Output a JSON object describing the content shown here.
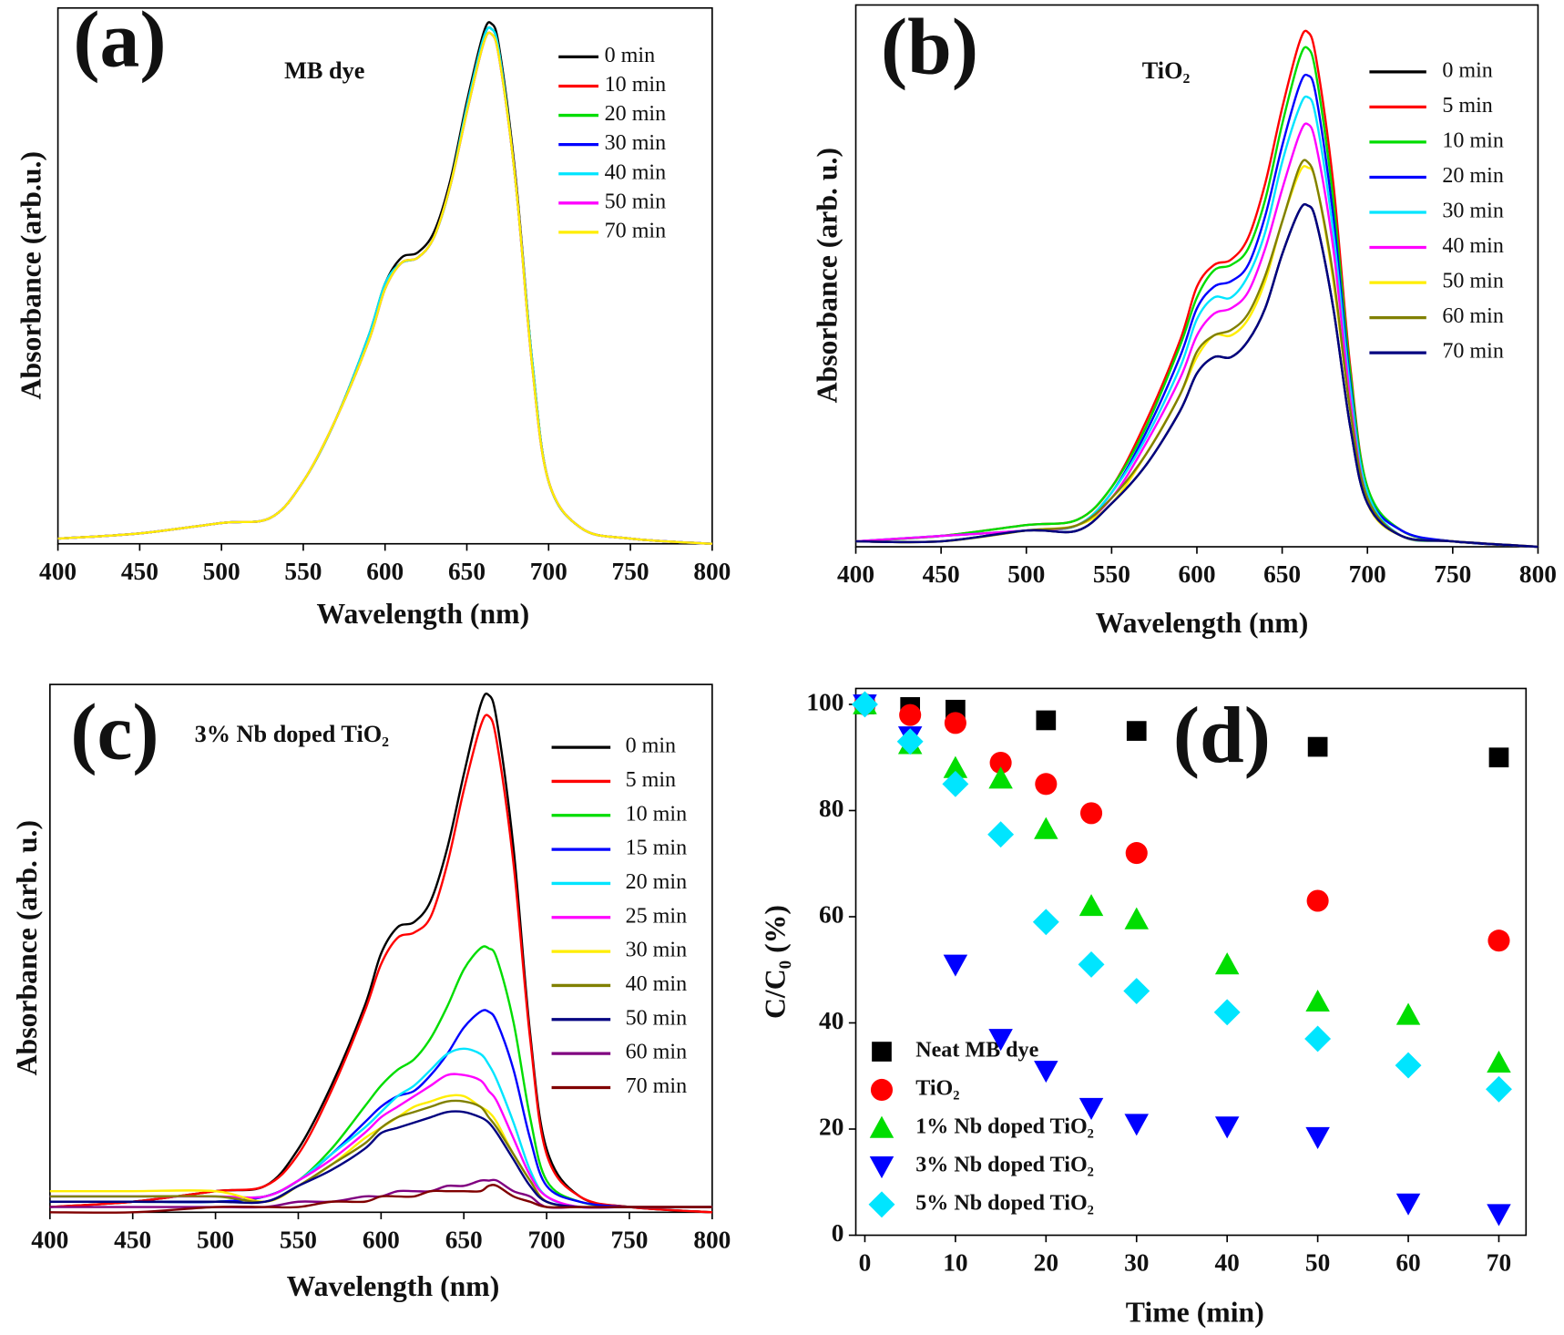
{
  "chart_data": [
    {
      "type": "line",
      "panel_label": "(a)",
      "annotation": "MB dye",
      "x_label": "Wavelength (nm)",
      "y_label": "Absorbance (arb.u.)",
      "xlim": [
        400,
        800
      ],
      "xticks": [
        400,
        450,
        500,
        550,
        600,
        650,
        700,
        750,
        800
      ],
      "ylim": [
        0,
        1.03
      ],
      "x": [
        400,
        450,
        500,
        530,
        550,
        570,
        590,
        600,
        610,
        620,
        630,
        640,
        650,
        660,
        665,
        670,
        680,
        690,
        700,
        720,
        750,
        800
      ],
      "series": [
        {
          "name": "0 min",
          "color": "#000000",
          "values": [
            0.01,
            0.02,
            0.04,
            0.05,
            0.12,
            0.24,
            0.4,
            0.5,
            0.55,
            0.56,
            0.6,
            0.7,
            0.85,
            0.98,
            1.0,
            0.95,
            0.7,
            0.35,
            0.12,
            0.03,
            0.01,
            0.0
          ]
        },
        {
          "name": "10 min",
          "color": "#ff0000",
          "values": [
            0.01,
            0.02,
            0.04,
            0.05,
            0.12,
            0.24,
            0.4,
            0.5,
            0.54,
            0.55,
            0.59,
            0.69,
            0.84,
            0.97,
            0.99,
            0.94,
            0.69,
            0.35,
            0.12,
            0.03,
            0.01,
            0.0
          ]
        },
        {
          "name": "20 min",
          "color": "#00dd00",
          "values": [
            0.01,
            0.02,
            0.04,
            0.05,
            0.12,
            0.24,
            0.4,
            0.5,
            0.54,
            0.55,
            0.59,
            0.69,
            0.84,
            0.97,
            0.99,
            0.94,
            0.69,
            0.35,
            0.12,
            0.03,
            0.01,
            0.0
          ]
        },
        {
          "name": "30 min",
          "color": "#0000ff",
          "values": [
            0.01,
            0.02,
            0.04,
            0.05,
            0.12,
            0.24,
            0.39,
            0.49,
            0.54,
            0.55,
            0.59,
            0.69,
            0.83,
            0.96,
            0.98,
            0.93,
            0.69,
            0.34,
            0.12,
            0.03,
            0.01,
            0.0
          ]
        },
        {
          "name": "40 min",
          "color": "#00e5ff",
          "values": [
            0.01,
            0.02,
            0.04,
            0.05,
            0.12,
            0.24,
            0.4,
            0.5,
            0.54,
            0.55,
            0.59,
            0.69,
            0.84,
            0.97,
            0.99,
            0.94,
            0.69,
            0.35,
            0.12,
            0.03,
            0.01,
            0.0
          ]
        },
        {
          "name": "50 min",
          "color": "#ff00ff",
          "values": [
            0.01,
            0.02,
            0.04,
            0.05,
            0.12,
            0.24,
            0.39,
            0.49,
            0.54,
            0.55,
            0.59,
            0.69,
            0.83,
            0.96,
            0.98,
            0.93,
            0.69,
            0.34,
            0.12,
            0.03,
            0.01,
            0.0
          ]
        },
        {
          "name": "70 min",
          "color": "#ffee00",
          "values": [
            0.01,
            0.02,
            0.04,
            0.05,
            0.12,
            0.24,
            0.39,
            0.49,
            0.54,
            0.55,
            0.59,
            0.69,
            0.83,
            0.96,
            0.98,
            0.93,
            0.69,
            0.34,
            0.12,
            0.03,
            0.01,
            0.0
          ]
        }
      ]
    },
    {
      "type": "line",
      "panel_label": "(b)",
      "annotation": "TiO₂",
      "x_label": "Wavelength (nm)",
      "y_label": "Absorbance (arb. u.)",
      "xlim": [
        400,
        800
      ],
      "xticks": [
        400,
        450,
        500,
        550,
        600,
        650,
        700,
        750,
        800
      ],
      "ylim": [
        0,
        1
      ],
      "x": [
        400,
        450,
        500,
        530,
        550,
        570,
        590,
        600,
        610,
        620,
        630,
        640,
        650,
        660,
        665,
        670,
        680,
        690,
        700,
        720,
        750,
        800
      ],
      "series": [
        {
          "name": "0 min",
          "color": "#000000",
          "values": [
            0.01,
            0.01,
            0.03,
            0.03,
            0.08,
            0.15,
            0.25,
            0.32,
            0.35,
            0.35,
            0.38,
            0.44,
            0.54,
            0.62,
            0.63,
            0.6,
            0.44,
            0.22,
            0.08,
            0.02,
            0.01,
            0.0
          ]
        },
        {
          "name": "5 min",
          "color": "#ff0000",
          "values": [
            0.01,
            0.02,
            0.04,
            0.05,
            0.11,
            0.23,
            0.38,
            0.48,
            0.52,
            0.53,
            0.57,
            0.67,
            0.81,
            0.93,
            0.95,
            0.9,
            0.67,
            0.33,
            0.11,
            0.03,
            0.01,
            0.0
          ]
        },
        {
          "name": "10 min",
          "color": "#00dd00",
          "values": [
            0.01,
            0.02,
            0.04,
            0.05,
            0.11,
            0.22,
            0.37,
            0.46,
            0.51,
            0.52,
            0.55,
            0.64,
            0.78,
            0.9,
            0.92,
            0.87,
            0.64,
            0.32,
            0.11,
            0.03,
            0.01,
            0.0
          ]
        },
        {
          "name": "20 min",
          "color": "#0000ff",
          "values": [
            0.01,
            0.02,
            0.03,
            0.04,
            0.1,
            0.21,
            0.35,
            0.44,
            0.48,
            0.49,
            0.52,
            0.61,
            0.74,
            0.85,
            0.87,
            0.83,
            0.61,
            0.3,
            0.1,
            0.03,
            0.01,
            0.0
          ]
        },
        {
          "name": "30 min",
          "color": "#00e5ff",
          "values": [
            0.01,
            0.02,
            0.03,
            0.04,
            0.1,
            0.2,
            0.33,
            0.42,
            0.46,
            0.46,
            0.5,
            0.58,
            0.71,
            0.81,
            0.83,
            0.79,
            0.58,
            0.29,
            0.1,
            0.02,
            0.01,
            0.0
          ]
        },
        {
          "name": "40 min",
          "color": "#ff00ff",
          "values": [
            0.01,
            0.02,
            0.03,
            0.04,
            0.09,
            0.19,
            0.31,
            0.39,
            0.43,
            0.44,
            0.47,
            0.55,
            0.66,
            0.76,
            0.78,
            0.74,
            0.55,
            0.27,
            0.09,
            0.02,
            0.01,
            0.0
          ]
        },
        {
          "name": "50 min",
          "color": "#ffee00",
          "values": [
            0.01,
            0.01,
            0.03,
            0.04,
            0.08,
            0.17,
            0.28,
            0.35,
            0.39,
            0.39,
            0.42,
            0.49,
            0.6,
            0.69,
            0.7,
            0.67,
            0.49,
            0.25,
            0.08,
            0.02,
            0.01,
            0.0
          ]
        },
        {
          "name": "60 min",
          "color": "#808000",
          "values": [
            0.01,
            0.01,
            0.03,
            0.04,
            0.09,
            0.17,
            0.28,
            0.36,
            0.39,
            0.4,
            0.43,
            0.5,
            0.6,
            0.7,
            0.71,
            0.67,
            0.5,
            0.25,
            0.09,
            0.02,
            0.01,
            0.0
          ]
        },
        {
          "name": "70 min",
          "color": "#000080",
          "values": [
            0.01,
            0.01,
            0.03,
            0.03,
            0.08,
            0.15,
            0.25,
            0.32,
            0.35,
            0.35,
            0.38,
            0.44,
            0.54,
            0.62,
            0.63,
            0.6,
            0.44,
            0.22,
            0.08,
            0.02,
            0.01,
            0.0
          ]
        }
      ]
    },
    {
      "type": "line",
      "panel_label": "(c)",
      "annotation": "3% Nb doped TiO₂",
      "x_label": "Wavelength (nm)",
      "y_label": "Absorbance (arb. u.)",
      "xlim": [
        400,
        800
      ],
      "xticks": [
        400,
        450,
        500,
        550,
        600,
        650,
        700,
        750,
        800
      ],
      "ylim": [
        0,
        1
      ],
      "x": [
        400,
        450,
        500,
        530,
        550,
        570,
        590,
        600,
        610,
        620,
        630,
        640,
        650,
        660,
        665,
        670,
        680,
        690,
        700,
        720,
        750,
        800
      ],
      "series": [
        {
          "name": "0 min",
          "color": "#000000",
          "values": [
            0.01,
            0.02,
            0.04,
            0.05,
            0.12,
            0.24,
            0.39,
            0.49,
            0.54,
            0.55,
            0.59,
            0.69,
            0.83,
            0.96,
            0.98,
            0.93,
            0.69,
            0.34,
            0.12,
            0.03,
            0.01,
            0.0
          ]
        },
        {
          "name": "5 min",
          "color": "#ff0000",
          "values": [
            0.01,
            0.02,
            0.04,
            0.05,
            0.11,
            0.23,
            0.38,
            0.47,
            0.52,
            0.53,
            0.56,
            0.66,
            0.8,
            0.92,
            0.94,
            0.89,
            0.66,
            0.33,
            0.11,
            0.03,
            0.01,
            0.0
          ]
        },
        {
          "name": "10 min",
          "color": "#00dd00",
          "values": [
            0.02,
            0.02,
            0.02,
            0.03,
            0.06,
            0.12,
            0.2,
            0.24,
            0.27,
            0.29,
            0.33,
            0.39,
            0.46,
            0.5,
            0.5,
            0.48,
            0.36,
            0.18,
            0.06,
            0.02,
            0.01,
            0.01
          ]
        },
        {
          "name": "15 min",
          "color": "#0000ff",
          "values": [
            0.02,
            0.02,
            0.02,
            0.03,
            0.06,
            0.11,
            0.17,
            0.2,
            0.22,
            0.23,
            0.26,
            0.3,
            0.35,
            0.38,
            0.38,
            0.36,
            0.27,
            0.14,
            0.05,
            0.02,
            0.01,
            0.01
          ]
        },
        {
          "name": "20 min",
          "color": "#00e5ff",
          "values": [
            0.03,
            0.03,
            0.03,
            0.03,
            0.06,
            0.11,
            0.16,
            0.19,
            0.22,
            0.24,
            0.27,
            0.3,
            0.31,
            0.3,
            0.28,
            0.25,
            0.17,
            0.08,
            0.03,
            0.01,
            0.01,
            0.01
          ]
        },
        {
          "name": "25 min",
          "color": "#ff00ff",
          "values": [
            0.03,
            0.03,
            0.03,
            0.03,
            0.06,
            0.1,
            0.15,
            0.18,
            0.2,
            0.22,
            0.24,
            0.26,
            0.26,
            0.25,
            0.23,
            0.21,
            0.14,
            0.07,
            0.03,
            0.01,
            0.01,
            0.01
          ]
        },
        {
          "name": "30 min",
          "color": "#ffee00",
          "values": [
            0.04,
            0.04,
            0.04,
            0.02,
            0.05,
            0.09,
            0.14,
            0.16,
            0.18,
            0.2,
            0.21,
            0.22,
            0.22,
            0.2,
            0.19,
            0.17,
            0.11,
            0.06,
            0.02,
            0.01,
            0.01,
            0.01
          ]
        },
        {
          "name": "40 min",
          "color": "#808000",
          "values": [
            0.03,
            0.03,
            0.03,
            0.02,
            0.05,
            0.09,
            0.13,
            0.16,
            0.18,
            0.19,
            0.2,
            0.21,
            0.21,
            0.2,
            0.18,
            0.16,
            0.11,
            0.06,
            0.02,
            0.01,
            0.01,
            0.01
          ]
        },
        {
          "name": "50 min",
          "color": "#000080",
          "values": [
            0.02,
            0.02,
            0.02,
            0.02,
            0.05,
            0.08,
            0.12,
            0.15,
            0.16,
            0.17,
            0.18,
            0.19,
            0.19,
            0.18,
            0.17,
            0.15,
            0.1,
            0.05,
            0.02,
            0.01,
            0.01,
            0.01
          ]
        },
        {
          "name": "60 min",
          "color": "#800080",
          "values": [
            0.01,
            0.01,
            0.01,
            0.01,
            0.02,
            0.02,
            0.03,
            0.03,
            0.04,
            0.04,
            0.04,
            0.05,
            0.05,
            0.06,
            0.06,
            0.06,
            0.04,
            0.03,
            0.01,
            0.01,
            0.01,
            0.01
          ]
        },
        {
          "name": "70 min",
          "color": "#800000",
          "values": [
            0.0,
            0.0,
            0.01,
            0.01,
            0.01,
            0.02,
            0.02,
            0.03,
            0.03,
            0.03,
            0.04,
            0.04,
            0.04,
            0.04,
            0.05,
            0.05,
            0.03,
            0.02,
            0.01,
            0.01,
            0.01,
            0.01
          ]
        }
      ]
    },
    {
      "type": "scatter",
      "panel_label": "(d)",
      "x_label": "Time (min)",
      "y_label": "C/C₀ (%)",
      "xlim": [
        -1,
        73
      ],
      "xticks": [
        0,
        10,
        20,
        30,
        40,
        50,
        60,
        70
      ],
      "ylim": [
        0,
        103
      ],
      "yticks": [
        0,
        20,
        40,
        60,
        80,
        100
      ],
      "series": [
        {
          "name": "Neat MB dye",
          "color": "#000000",
          "marker": "square",
          "x": [
            0,
            5,
            10,
            20,
            30,
            50,
            70
          ],
          "values": [
            100,
            99.5,
            99,
            97,
            95,
            92,
            90
          ]
        },
        {
          "name": "TiO₂",
          "color": "#ff0000",
          "marker": "circle",
          "x": [
            0,
            5,
            10,
            15,
            20,
            25,
            30,
            50,
            70
          ],
          "values": [
            100,
            98,
            96.5,
            89,
            85,
            79.5,
            72,
            63,
            55.5
          ]
        },
        {
          "name": "1% Nb doped TiO₂",
          "color": "#00dd00",
          "marker": "triangle",
          "x": [
            0,
            5,
            10,
            15,
            20,
            25,
            30,
            40,
            50,
            60,
            70
          ],
          "values": [
            100,
            92.5,
            88,
            86,
            76.5,
            62,
            59.5,
            51,
            44,
            41.5,
            32.5
          ]
        },
        {
          "name": "3% Nb doped TiO₂",
          "color": "#0000ff",
          "marker": "triangle-down",
          "x": [
            0,
            5,
            10,
            15,
            20,
            25,
            30,
            40,
            50,
            60,
            70
          ],
          "values": [
            100,
            94,
            51,
            37,
            31,
            24,
            21,
            20.5,
            18.5,
            6,
            4
          ]
        },
        {
          "name": "5% Nb doped TiO₂",
          "color": "#00e5ff",
          "marker": "diamond",
          "x": [
            0,
            5,
            10,
            15,
            20,
            25,
            30,
            40,
            50,
            60,
            70
          ],
          "values": [
            100,
            93,
            85,
            75.5,
            59,
            51,
            46,
            42,
            37,
            32,
            27.5
          ]
        }
      ]
    }
  ]
}
